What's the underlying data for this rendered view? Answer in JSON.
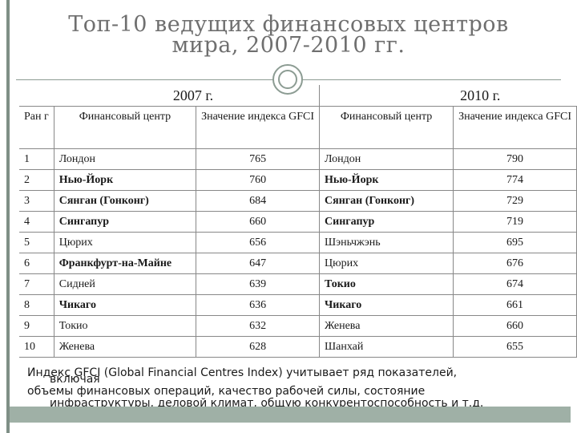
{
  "title_line1": "Топ-10 ведущих финансовых центров",
  "title_line2": "мира, 2007-2010 гг.",
  "table": {
    "year_2007": "2007 г.",
    "year_2010": "2010 г.",
    "headers": {
      "rank": "Ран г",
      "center": "Финансовый центр",
      "value": "Значение индекса GFCI",
      "center2": "Финансовый центр",
      "value2": "Значение индекса GFCI"
    },
    "rows": [
      {
        "rank": "1",
        "city2007": "Лондон",
        "val2007": "765",
        "city2010": "Лондон",
        "val2010": "790"
      },
      {
        "rank": "2",
        "city2007": "Нью-Йорк",
        "val2007": "760",
        "city2010": "Нью-Йорк",
        "val2010": "774"
      },
      {
        "rank": "3",
        "city2007": "Сянган (Гонконг)",
        "val2007": "684",
        "city2010": "Сянган (Гонконг)",
        "val2010": "729"
      },
      {
        "rank": "4",
        "city2007": "Сингапур",
        "val2007": "660",
        "city2010": "Сингапур",
        "val2010": "719"
      },
      {
        "rank": "5",
        "city2007": "Цюрих",
        "val2007": "656",
        "city2010": "Шэньчжэнь",
        "val2010": "695"
      },
      {
        "rank": "6",
        "city2007": "Франкфурт-на-Майне",
        "val2007": "647",
        "city2010": "Цюрих",
        "val2010": "676"
      },
      {
        "rank": "7",
        "city2007": "Сидней",
        "val2007": "639",
        "city2010": "Токио",
        "val2010": "674"
      },
      {
        "rank": "8",
        "city2007": "Чикаго",
        "val2007": "636",
        "city2010": "Чикаго",
        "val2010": "661"
      },
      {
        "rank": "9",
        "city2007": "Токио",
        "val2007": "632",
        "city2010": "Женева",
        "val2010": "660"
      },
      {
        "rank": "10",
        "city2007": "Женева",
        "val2007": "628",
        "city2010": "Шанхай",
        "val2010": "655"
      }
    ]
  },
  "note": {
    "line1": "Индекс GFCI (Global Financial Centres Index) учитывает ряд показателей,",
    "line2": "включая",
    "line3": "объемы финансовых операций, качество рабочей силы, состояние",
    "line4": "инфраструктуры, деловой климат, общую конкурентоспособность и т.д."
  },
  "colors": {
    "accent_bar": "#9fb0a6",
    "rule": "#8c9c93",
    "title": "#6f6f6f"
  }
}
